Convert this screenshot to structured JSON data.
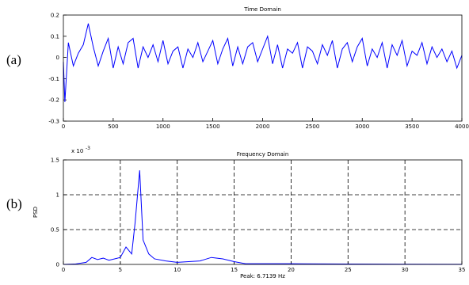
{
  "chart_data": [
    {
      "type": "line",
      "label": "(a)",
      "title": "Time Domain",
      "color": "#0000ff",
      "grid": false,
      "x": [
        0,
        15,
        50,
        100,
        150,
        200,
        250,
        300,
        350,
        400,
        450,
        500,
        550,
        600,
        650,
        700,
        750,
        800,
        850,
        900,
        950,
        1000,
        1050,
        1100,
        1150,
        1200,
        1250,
        1300,
        1350,
        1400,
        1450,
        1500,
        1550,
        1600,
        1650,
        1700,
        1750,
        1800,
        1850,
        1900,
        1950,
        2000,
        2050,
        2100,
        2150,
        2200,
        2250,
        2300,
        2350,
        2400,
        2450,
        2500,
        2550,
        2600,
        2650,
        2700,
        2750,
        2800,
        2850,
        2900,
        2950,
        3000,
        3050,
        3100,
        3150,
        3200,
        3250,
        3300,
        3350,
        3400,
        3450,
        3500,
        3550,
        3600,
        3650,
        3700,
        3750,
        3800,
        3850,
        3900,
        3950,
        4000
      ],
      "values": [
        -0.02,
        -0.21,
        0.07,
        -0.04,
        0.02,
        0.06,
        0.16,
        0.05,
        -0.04,
        0.03,
        0.09,
        -0.05,
        0.05,
        -0.03,
        0.07,
        0.09,
        -0.05,
        0.05,
        0.0,
        0.06,
        -0.02,
        0.08,
        -0.03,
        0.03,
        0.05,
        -0.05,
        0.04,
        0.0,
        0.07,
        -0.02,
        0.03,
        0.08,
        -0.03,
        0.04,
        0.09,
        -0.04,
        0.05,
        -0.03,
        0.05,
        0.07,
        -0.02,
        0.04,
        0.1,
        -0.03,
        0.06,
        -0.05,
        0.04,
        0.02,
        0.07,
        -0.05,
        0.05,
        0.03,
        -0.03,
        0.06,
        0.01,
        0.08,
        -0.05,
        0.04,
        0.07,
        -0.02,
        0.05,
        0.09,
        -0.04,
        0.04,
        0.0,
        0.07,
        -0.05,
        0.06,
        0.01,
        0.08,
        -0.04,
        0.03,
        0.01,
        0.07,
        -0.03,
        0.05,
        0.0,
        0.04,
        -0.02,
        0.03,
        -0.05,
        0.01
      ],
      "xlim": [
        0,
        4000
      ],
      "xticks": [
        0,
        500,
        1000,
        1500,
        2000,
        2500,
        3000,
        3500,
        4000
      ],
      "ylim": [
        -0.3,
        0.2
      ],
      "yticks": [
        -0.3,
        -0.2,
        -0.1,
        0,
        0.1,
        0.2
      ]
    },
    {
      "type": "line",
      "label": "(b)",
      "title": "Frequency Domain",
      "scale_text": "x 10",
      "scale_exponent": "-3",
      "y_label": "PSD",
      "x_label": "Peak:  6.7139  Hz",
      "color": "#0000ff",
      "grid": true,
      "x": [
        0,
        1,
        2,
        2.5,
        3,
        3.5,
        4,
        4.5,
        5,
        5.5,
        6,
        6.3,
        6.7,
        7,
        7.5,
        8,
        9,
        10,
        11,
        12,
        13,
        14,
        15,
        16,
        20,
        25,
        30,
        35
      ],
      "values": [
        0,
        0.005,
        0.03,
        0.1,
        0.07,
        0.09,
        0.06,
        0.08,
        0.1,
        0.25,
        0.15,
        0.6,
        1.35,
        0.35,
        0.15,
        0.08,
        0.05,
        0.03,
        0.04,
        0.05,
        0.1,
        0.08,
        0.04,
        0.01,
        0.01,
        0.005,
        0.003,
        0.002
      ],
      "xlim": [
        0,
        35
      ],
      "xticks": [
        0,
        5,
        10,
        15,
        20,
        25,
        30,
        35
      ],
      "ylim": [
        0,
        1.5
      ],
      "yticks": [
        0,
        0.5,
        1,
        1.5
      ]
    }
  ]
}
